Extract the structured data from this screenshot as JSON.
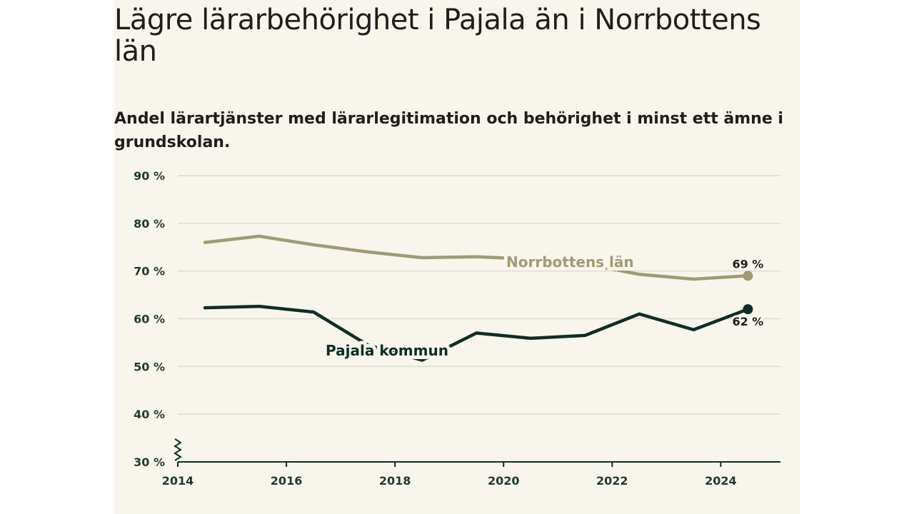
{
  "chart_data": {
    "type": "line",
    "title": "Lägre lärarbehörighet i Pajala än i Norrbottens län",
    "subtitle": "Andel lärartjänster med lärarlegitimation och behörighet i minst ett ämne i grundskolan.",
    "xlabel": "",
    "ylabel": "",
    "xlim": [
      2014,
      2025.1
    ],
    "ylim": [
      30,
      90
    ],
    "x_ticks": [
      2014,
      2016,
      2018,
      2020,
      2022,
      2024
    ],
    "y_ticks": [
      30,
      40,
      50,
      60,
      70,
      80,
      90
    ],
    "y_tick_labels": [
      "30 %",
      "40 %",
      "50 %",
      "60 %",
      "70 %",
      "80 %",
      "90 %"
    ],
    "grid": true,
    "axis_break": true,
    "series": [
      {
        "name": "Norrbottens län",
        "color": "#a09b72",
        "x": [
          2014.5,
          2015.5,
          2016.5,
          2017.5,
          2018.5,
          2019.5,
          2020.5,
          2021.5,
          2022.5,
          2023.5,
          2024.5
        ],
        "values": [
          76,
          77.3,
          75.5,
          74,
          72.8,
          73,
          72.5,
          71.5,
          69.3,
          68.3,
          69
        ],
        "end_label": "69 %"
      },
      {
        "name": "Pajala kommun",
        "color": "#0d2e27",
        "x": [
          2014.5,
          2015.5,
          2016.5,
          2017.5,
          2018.5,
          2019.5,
          2020.5,
          2021.5,
          2022.5,
          2023.5,
          2024.5
        ],
        "values": [
          62.3,
          62.6,
          61.4,
          54.5,
          51.3,
          57,
          55.9,
          56.5,
          61,
          57.7,
          62
        ],
        "end_label": "62 %"
      }
    ]
  }
}
